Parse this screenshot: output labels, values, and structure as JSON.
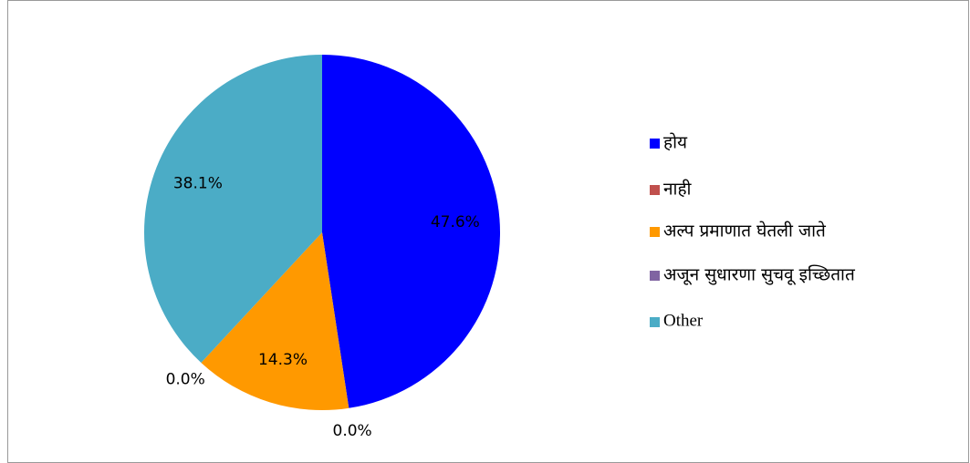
{
  "chart_data": {
    "type": "pie",
    "categories": [
      "होय",
      "नाही",
      "अल्प प्रमाणात घेतली जाते",
      "अजून सुधारणा सुचवू इच्छितात",
      "Other"
    ],
    "values": [
      47.6,
      0.0,
      14.3,
      0.0,
      38.1
    ],
    "value_labels": [
      "47.6%",
      "0.0%",
      "14.3%",
      "0.0%",
      "38.1%"
    ],
    "colors": [
      "#0000ff",
      "#c0504d",
      "#ff9900",
      "#8064a2",
      "#4bacc6"
    ],
    "legend": "right"
  }
}
